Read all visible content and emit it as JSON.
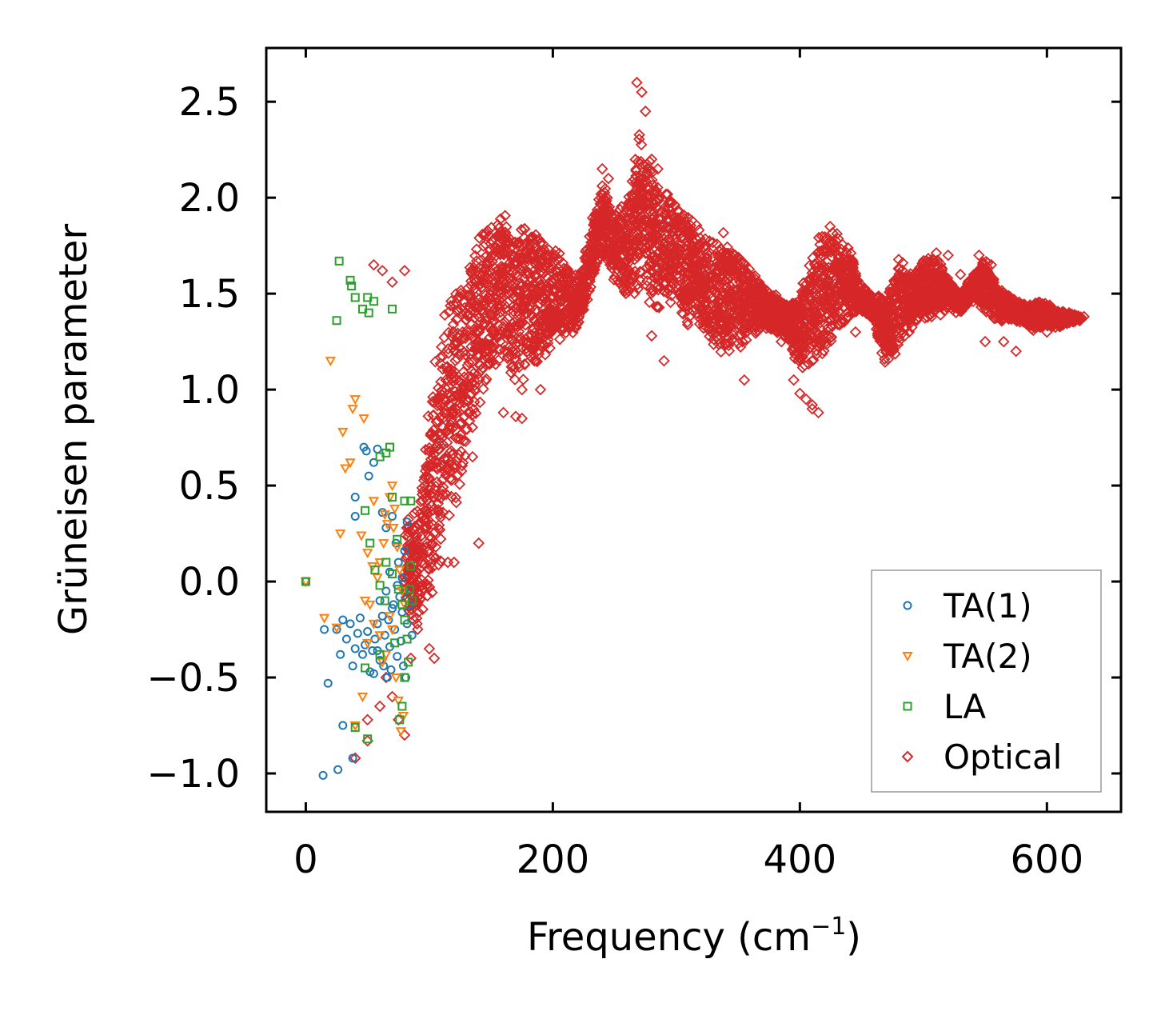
{
  "chart_data": {
    "type": "scatter",
    "title": "",
    "xlabel": "Frequency (cm",
    "xlabel_sup": "−1",
    "xlabel_end": ")",
    "ylabel": "Grüneisen parameter",
    "xlim": [
      -32,
      660
    ],
    "ylim": [
      -1.2,
      2.78
    ],
    "xticks": [
      0,
      200,
      400,
      600
    ],
    "xtick_labels": [
      "0",
      "200",
      "400",
      "600"
    ],
    "yticks": [
      -1.0,
      -0.5,
      0.0,
      0.5,
      1.0,
      1.5,
      2.0,
      2.5
    ],
    "ytick_labels": [
      "−1.0",
      "−0.5",
      "0.0",
      "0.5",
      "1.0",
      "1.5",
      "2.0",
      "2.5"
    ],
    "grid": false,
    "legend_position": "bottom-right",
    "series": [
      {
        "name": "TA(1)",
        "marker": "circle",
        "color": "#1f77b4",
        "points": [
          [
            0,
            0.0
          ],
          [
            14,
            -1.01
          ],
          [
            26,
            -0.98
          ],
          [
            30,
            -0.75
          ],
          [
            38,
            -0.92
          ],
          [
            15,
            -0.25
          ],
          [
            18,
            -0.53
          ],
          [
            25,
            -0.25
          ],
          [
            28,
            -0.38
          ],
          [
            30,
            -0.2
          ],
          [
            33,
            -0.3
          ],
          [
            36,
            -0.22
          ],
          [
            38,
            -0.44
          ],
          [
            40,
            -0.35
          ],
          [
            42,
            -0.27
          ],
          [
            44,
            -0.19
          ],
          [
            46,
            -0.38
          ],
          [
            48,
            -0.33
          ],
          [
            50,
            -0.26
          ],
          [
            52,
            -0.47
          ],
          [
            54,
            -0.36
          ],
          [
            56,
            -0.3
          ],
          [
            58,
            -0.22
          ],
          [
            60,
            -0.41
          ],
          [
            62,
            -0.18
          ],
          [
            64,
            -0.28
          ],
          [
            66,
            -0.5
          ],
          [
            68,
            -0.34
          ],
          [
            70,
            -0.14
          ],
          [
            72,
            -0.25
          ],
          [
            74,
            -0.39
          ],
          [
            76,
            -0.08
          ],
          [
            78,
            -0.16
          ],
          [
            80,
            -0.05
          ],
          [
            82,
            -0.22
          ],
          [
            47,
            0.7
          ],
          [
            49,
            0.68
          ],
          [
            51,
            0.55
          ],
          [
            40,
            0.44
          ],
          [
            40,
            0.34
          ],
          [
            55,
            0.62
          ],
          [
            58,
            0.69
          ],
          [
            62,
            0.36
          ],
          [
            65,
            0.28
          ],
          [
            70,
            0.34
          ],
          [
            73,
            0.2
          ],
          [
            75,
            0.1
          ],
          [
            78,
            0.02
          ],
          [
            80,
            0.16
          ],
          [
            82,
            0.31
          ],
          [
            60,
            -0.1
          ],
          [
            65,
            -0.05
          ],
          [
            68,
            0.05
          ],
          [
            71,
            -0.12
          ],
          [
            74,
            -0.02
          ],
          [
            77,
            -0.31
          ],
          [
            79,
            -0.44
          ],
          [
            81,
            -0.5
          ],
          [
            84,
            -0.12
          ],
          [
            86,
            -0.28
          ],
          [
            55,
            -0.48
          ],
          [
            58,
            -0.36
          ],
          [
            63,
            -0.44
          ],
          [
            67,
            -0.2
          ],
          [
            69,
            -0.46
          ]
        ]
      },
      {
        "name": "TA(2)",
        "marker": "triangle",
        "color": "#ff7f0e",
        "points": [
          [
            0,
            0.0
          ],
          [
            20,
            1.15
          ],
          [
            38,
            0.9
          ],
          [
            40,
            0.95
          ],
          [
            47,
            0.85
          ],
          [
            30,
            0.78
          ],
          [
            36,
            0.62
          ],
          [
            32,
            0.59
          ],
          [
            28,
            0.25
          ],
          [
            45,
            0.24
          ],
          [
            50,
            0.15
          ],
          [
            54,
            0.08
          ],
          [
            58,
            0.02
          ],
          [
            60,
            0.1
          ],
          [
            63,
            0.2
          ],
          [
            66,
            0.3
          ],
          [
            68,
            0.44
          ],
          [
            70,
            0.5
          ],
          [
            72,
            0.38
          ],
          [
            74,
            0.18
          ],
          [
            76,
            0.06
          ],
          [
            78,
            -0.05
          ],
          [
            80,
            -0.12
          ],
          [
            46,
            -0.6
          ],
          [
            40,
            -0.75
          ],
          [
            50,
            -0.32
          ],
          [
            52,
            -0.12
          ],
          [
            55,
            -0.22
          ],
          [
            60,
            -0.28
          ],
          [
            62,
            -0.42
          ],
          [
            65,
            -0.38
          ],
          [
            68,
            -0.18
          ],
          [
            70,
            -0.25
          ],
          [
            73,
            -0.5
          ],
          [
            75,
            -0.62
          ],
          [
            77,
            -0.78
          ],
          [
            79,
            -0.7
          ],
          [
            15,
            -0.19
          ],
          [
            25,
            -0.24
          ],
          [
            55,
            0.42
          ],
          [
            64,
            0.35
          ],
          [
            71,
            0.28
          ],
          [
            48,
            -0.1
          ]
        ]
      },
      {
        "name": "LA",
        "marker": "square",
        "color": "#2ca02c",
        "points": [
          [
            0,
            0.0
          ],
          [
            27,
            1.67
          ],
          [
            25,
            1.36
          ],
          [
            36,
            1.57
          ],
          [
            37,
            1.54
          ],
          [
            40,
            1.48
          ],
          [
            46,
            1.42
          ],
          [
            50,
            1.48
          ],
          [
            51,
            1.4
          ],
          [
            55,
            1.46
          ],
          [
            70,
            1.42
          ],
          [
            60,
            0.65
          ],
          [
            65,
            0.67
          ],
          [
            68,
            0.7
          ],
          [
            70,
            0.44
          ],
          [
            80,
            0.42
          ],
          [
            85,
            0.42
          ],
          [
            48,
            0.37
          ],
          [
            52,
            0.2
          ],
          [
            56,
            0.06
          ],
          [
            60,
            -0.02
          ],
          [
            65,
            0.1
          ],
          [
            70,
            0.04
          ],
          [
            75,
            -0.04
          ],
          [
            78,
            -0.12
          ],
          [
            80,
            -0.2
          ],
          [
            82,
            -0.3
          ],
          [
            84,
            -0.04
          ],
          [
            86,
            -0.1
          ],
          [
            85,
            0.08
          ],
          [
            83,
            -0.42
          ],
          [
            80,
            -0.5
          ],
          [
            78,
            -0.65
          ],
          [
            76,
            -0.72
          ],
          [
            48,
            -0.45
          ],
          [
            50,
            -0.82
          ],
          [
            40,
            -0.76
          ],
          [
            60,
            -0.38
          ],
          [
            64,
            -0.1
          ],
          [
            72,
            -0.32
          ],
          [
            74,
            0.22
          ]
        ]
      },
      {
        "name": "Optical",
        "marker": "diamond",
        "color": "#d62728",
        "extra_points": [
          [
            55,
            1.65
          ],
          [
            62,
            1.62
          ],
          [
            70,
            1.56
          ],
          [
            80,
            1.62
          ],
          [
            50,
            -0.83
          ],
          [
            50,
            -0.72
          ],
          [
            40,
            -0.92
          ],
          [
            60,
            -0.65
          ],
          [
            65,
            -0.5
          ],
          [
            70,
            -0.6
          ],
          [
            75,
            -0.72
          ],
          [
            80,
            -0.8
          ],
          [
            85,
            -0.4
          ],
          [
            100,
            -0.35
          ],
          [
            104,
            -0.4
          ],
          [
            120,
            0.1
          ],
          [
            140,
            0.2
          ],
          [
            135,
            0.65
          ],
          [
            115,
            0.1
          ],
          [
            355,
            1.05
          ],
          [
            410,
            0.92
          ],
          [
            415,
            0.88
          ],
          [
            445,
            1.3
          ],
          [
            550,
            1.25
          ],
          [
            575,
            1.2
          ],
          [
            565,
            1.25
          ],
          [
            510,
            1.5
          ],
          [
            480,
            1.55
          ],
          [
            290,
            1.15
          ],
          [
            280,
            1.28
          ],
          [
            240,
            2.15
          ],
          [
            245,
            2.1
          ],
          [
            225,
            1.6
          ],
          [
            450,
            1.45
          ],
          [
            460,
            1.4
          ],
          [
            600,
            1.3
          ],
          [
            625,
            1.37
          ],
          [
            630,
            1.38
          ],
          [
            268,
            2.6
          ],
          [
            272,
            2.55
          ],
          [
            275,
            2.45
          ],
          [
            280,
            2.2
          ],
          [
            285,
            2.15
          ],
          [
            175,
            1.0
          ],
          [
            185,
            1.15
          ],
          [
            190,
            1.0
          ],
          [
            160,
            0.88
          ],
          [
            170,
            0.86
          ],
          [
            175,
            0.85
          ],
          [
            385,
            1.25
          ],
          [
            395,
            1.05
          ],
          [
            400,
            0.98
          ],
          [
            405,
            0.95
          ],
          [
            410,
            0.9
          ],
          [
            520,
            1.7
          ],
          [
            530,
            1.6
          ],
          [
            545,
            1.7
          ],
          [
            555,
            1.65
          ]
        ],
        "envelope": [
          [
            80,
            -0.15,
            0.35
          ],
          [
            90,
            -0.3,
            0.45
          ],
          [
            100,
            -0.15,
            0.95
          ],
          [
            110,
            0.1,
            1.4
          ],
          [
            120,
            0.3,
            1.6
          ],
          [
            130,
            0.6,
            1.7
          ],
          [
            140,
            0.9,
            1.85
          ],
          [
            150,
            1.05,
            1.9
          ],
          [
            160,
            1.1,
            1.95
          ],
          [
            170,
            1.0,
            1.85
          ],
          [
            180,
            1.05,
            1.9
          ],
          [
            190,
            1.1,
            1.85
          ],
          [
            200,
            1.2,
            1.75
          ],
          [
            210,
            1.25,
            1.7
          ],
          [
            220,
            1.3,
            1.6
          ],
          [
            240,
            1.7,
            2.1
          ],
          [
            250,
            1.55,
            1.95
          ],
          [
            260,
            1.45,
            2.0
          ],
          [
            270,
            1.5,
            2.45
          ],
          [
            280,
            1.4,
            2.2
          ],
          [
            290,
            1.4,
            2.05
          ],
          [
            300,
            1.45,
            2.0
          ],
          [
            310,
            1.3,
            1.95
          ],
          [
            320,
            1.3,
            1.85
          ],
          [
            330,
            1.2,
            1.8
          ],
          [
            340,
            1.15,
            1.85
          ],
          [
            350,
            1.2,
            1.75
          ],
          [
            360,
            1.25,
            1.65
          ],
          [
            370,
            1.3,
            1.55
          ],
          [
            380,
            1.3,
            1.5
          ],
          [
            390,
            1.25,
            1.45
          ],
          [
            400,
            1.1,
            1.5
          ],
          [
            410,
            1.05,
            1.8
          ],
          [
            420,
            1.15,
            1.9
          ],
          [
            430,
            1.3,
            1.85
          ],
          [
            440,
            1.35,
            1.75
          ],
          [
            450,
            1.4,
            1.55
          ],
          [
            460,
            1.35,
            1.5
          ],
          [
            470,
            1.1,
            1.5
          ],
          [
            480,
            1.2,
            1.7
          ],
          [
            490,
            1.3,
            1.65
          ],
          [
            500,
            1.35,
            1.7
          ],
          [
            510,
            1.35,
            1.75
          ],
          [
            520,
            1.4,
            1.6
          ],
          [
            530,
            1.4,
            1.5
          ],
          [
            540,
            1.45,
            1.6
          ],
          [
            550,
            1.4,
            1.7
          ],
          [
            560,
            1.35,
            1.55
          ],
          [
            570,
            1.35,
            1.5
          ],
          [
            580,
            1.35,
            1.45
          ],
          [
            590,
            1.3,
            1.48
          ],
          [
            600,
            1.32,
            1.45
          ],
          [
            610,
            1.32,
            1.42
          ],
          [
            620,
            1.35,
            1.4
          ],
          [
            628,
            1.36,
            1.38
          ]
        ]
      }
    ]
  }
}
